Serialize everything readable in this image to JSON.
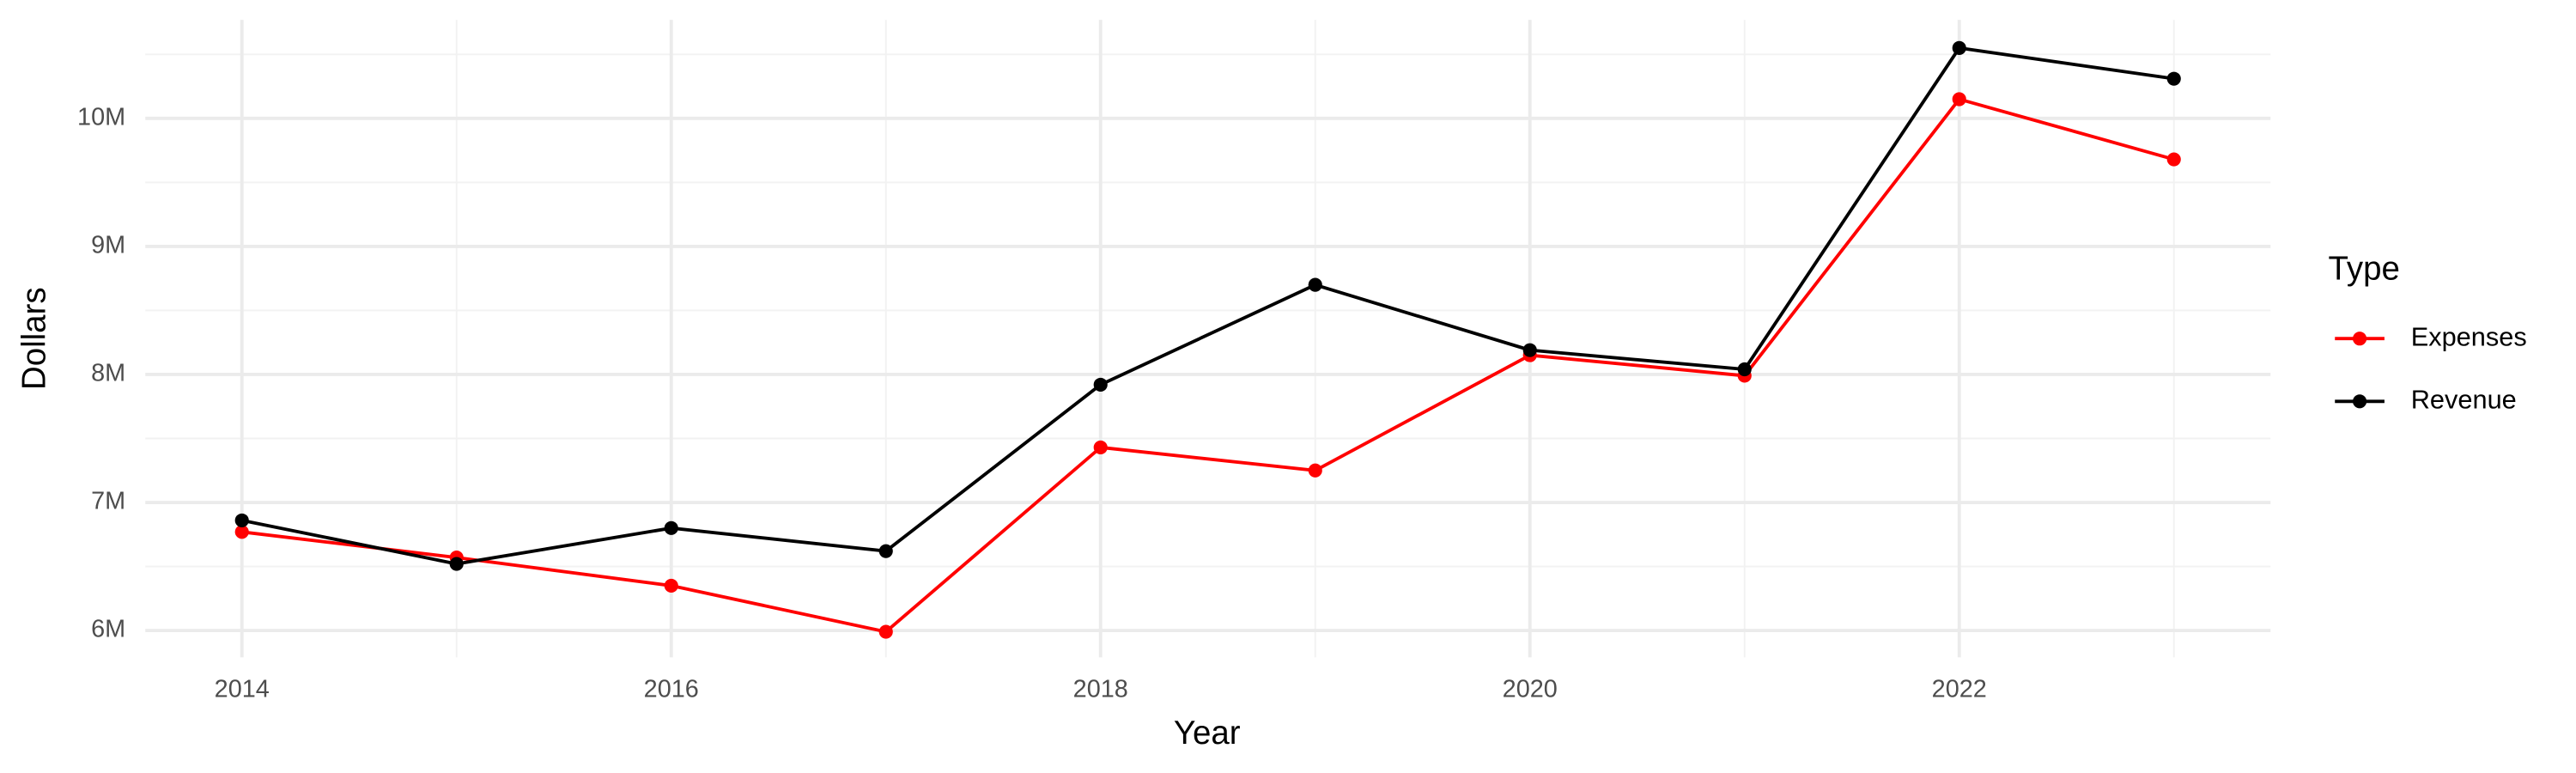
{
  "chart_data": {
    "type": "line",
    "x_label": "Year",
    "y_label": "Dollars",
    "legend_title": "Type",
    "x": [
      2014,
      2015,
      2016,
      2017,
      2018,
      2019,
      2020,
      2021,
      2022,
      2023
    ],
    "series": [
      {
        "name": "Expenses",
        "color": "#ff0000",
        "values": [
          6770000,
          6570000,
          6350000,
          5990000,
          7430000,
          7250000,
          8150000,
          7990000,
          10150000,
          9680000
        ]
      },
      {
        "name": "Revenue",
        "color": "#000000",
        "values": [
          6860000,
          6520000,
          6800000,
          6620000,
          7920000,
          8700000,
          8190000,
          8040000,
          10550000,
          10310000
        ]
      }
    ],
    "xlim": [
      2013.55,
      2023.45
    ],
    "xticks": [
      2014,
      2016,
      2018,
      2020,
      2022
    ],
    "ylim": [
      5790000,
      10770000
    ],
    "yticks": [
      {
        "value": 6000000,
        "label": "6M"
      },
      {
        "value": 7000000,
        "label": "7M"
      },
      {
        "value": 8000000,
        "label": "8M"
      },
      {
        "value": 9000000,
        "label": "9M"
      },
      {
        "value": 10000000,
        "label": "10M"
      }
    ],
    "grid": true,
    "minor_grid": true,
    "legend": "right",
    "markers": true
  }
}
